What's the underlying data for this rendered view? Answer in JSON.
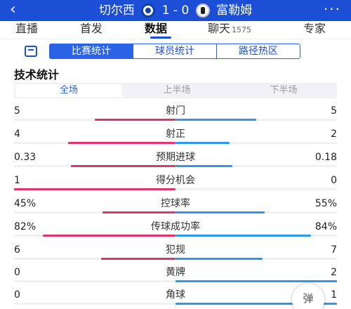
{
  "header": {
    "back_icon": "‹",
    "home_team": "切尔西",
    "score": "1 - 0",
    "away_team": "富勒姆",
    "more_icon": "···"
  },
  "tabs": [
    {
      "label": "直播",
      "active": false
    },
    {
      "label": "首发",
      "active": false
    },
    {
      "label": "数据",
      "active": true
    },
    {
      "label": "聊天",
      "count": "1575",
      "active": false
    },
    {
      "label": "专家",
      "active": false
    }
  ],
  "subtabs": [
    {
      "label": "比赛统计",
      "active": true
    },
    {
      "label": "球员统计",
      "active": false
    },
    {
      "label": "路径热区",
      "active": false
    }
  ],
  "section_title": "技术统计",
  "halves": [
    {
      "label": "全场",
      "active": true
    },
    {
      "label": "上半场",
      "active": false
    },
    {
      "label": "下半场",
      "active": false
    }
  ],
  "stats": [
    {
      "name": "射门",
      "home": "5",
      "away": "5",
      "home_share": 0.5,
      "away_share": 0.5
    },
    {
      "name": "射正",
      "home": "4",
      "away": "2",
      "home_share": 0.667,
      "away_share": 0.333
    },
    {
      "name": "预期进球",
      "home": "0.33",
      "away": "0.18",
      "home_share": 0.647,
      "away_share": 0.353
    },
    {
      "name": "得分机会",
      "home": "1",
      "away": "0",
      "home_share": 1.0,
      "away_share": 0.0
    },
    {
      "name": "控球率",
      "home": "45%",
      "away": "55%",
      "home_share": 0.45,
      "away_share": 0.55
    },
    {
      "name": "传球成功率",
      "home": "82%",
      "away": "84%",
      "home_share": 0.82,
      "away_share": 0.84
    },
    {
      "name": "犯规",
      "home": "6",
      "away": "7",
      "home_share": 0.462,
      "away_share": 0.538
    },
    {
      "name": "黄牌",
      "home": "0",
      "away": "2",
      "home_share": 0.0,
      "away_share": 1.0
    },
    {
      "name": "角球",
      "home": "0",
      "away": "1",
      "home_share": 0.0,
      "away_share": 1.0
    }
  ],
  "float_button": "弹",
  "colors": {
    "brand": "#1d4fd6",
    "home_bar": "#e0356a",
    "away_bar": "#3096ee"
  }
}
